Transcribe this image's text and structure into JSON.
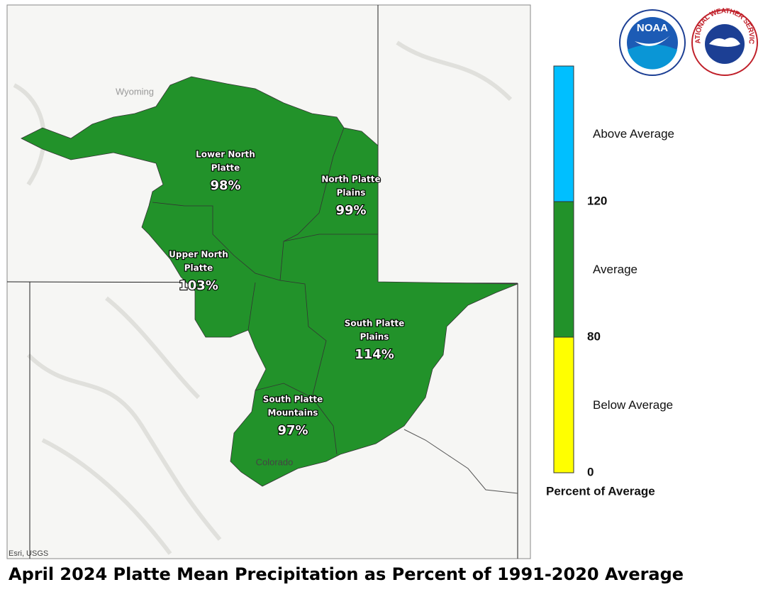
{
  "title": "April 2024 Platte Mean Precipitation as Percent of 1991-2020 Average",
  "map": {
    "states": [
      "Wyoming",
      "Colorado"
    ],
    "attribution": "Esri, USGS",
    "regions": [
      {
        "lines": [
          "Lower North",
          "Platte"
        ],
        "value": "98%"
      },
      {
        "lines": [
          "North Platte",
          "Plains"
        ],
        "value": "99%"
      },
      {
        "lines": [
          "Upper North",
          "Platte"
        ],
        "value": "103%"
      },
      {
        "lines": [
          "South Platte",
          "Plains"
        ],
        "value": "114%"
      },
      {
        "lines": [
          "South Platte",
          "Mountains"
        ],
        "value": "97%"
      }
    ]
  },
  "legend": {
    "bands": [
      {
        "label": "Above Average",
        "color": "#00bfff"
      },
      {
        "label": "Average",
        "color": "#22922a"
      },
      {
        "label": "Below Average",
        "color": "#ffff00"
      }
    ],
    "ticks": [
      "120",
      "80",
      "0"
    ],
    "title": "Percent of Average"
  },
  "logos": {
    "noaa": "NOAA",
    "nws": "NATIONAL WEATHER SERVICE"
  }
}
